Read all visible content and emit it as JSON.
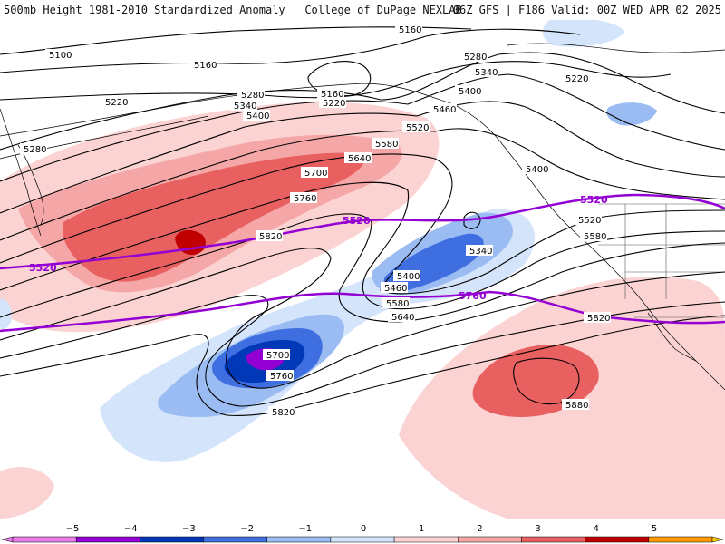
{
  "header": {
    "left_title": "500mb Height 1981-2010 Standardized Anomaly | College of DuPage NEXLAB",
    "right_title": "06Z GFS | F186 Valid: 00Z WED APR 02 2025"
  },
  "contour_labels": {
    "c5100": "5100",
    "c5160a": "5160",
    "c5160b": "5160",
    "c5160c": "5160",
    "c5220a": "5220",
    "c5220b": "5220",
    "c5220c": "5220",
    "c5280a": "5280",
    "c5280b": "5280",
    "c5280c": "5280",
    "c5340a": "5340",
    "c5340b": "5340",
    "c5340c": "5340",
    "c5400a": "5400",
    "c5400b": "5400",
    "c5400c": "5400",
    "c5400d": "5400",
    "c5460a": "5460",
    "c5460b": "5460",
    "c5520a": "5520",
    "c5520b": "5520",
    "c5580a": "5580",
    "c5580b": "5580",
    "c5580c": "5580",
    "c5640a": "5640",
    "c5640b": "5640",
    "c5700a": "5700",
    "c5700b": "5700",
    "c5760a": "5760",
    "c5760b": "5760",
    "c5820a": "5820",
    "c5820b": "5820",
    "c5820c": "5820",
    "c5880": "5880"
  },
  "reference_labels": {
    "r5520a": "5520",
    "r5520b": "5520",
    "r5520c": "5520",
    "r5760": "5760"
  },
  "colorbar": {
    "ticks": [
      "−5",
      "−4",
      "−3",
      "−2",
      "−1",
      "0",
      "1",
      "2",
      "3",
      "4",
      "5"
    ],
    "colors": {
      "neg5": "#e87ce8",
      "neg4": "#9400d3",
      "neg3": "#0038b8",
      "neg2": "#3f6ee0",
      "neg1": "#9bbcf2",
      "neg05": "#d3e4fb",
      "pos05": "#fbd3d3",
      "pos1": "#f5a7a7",
      "pos2": "#e86060",
      "pos3": "#c00000",
      "pos4": "#ff9900",
      "pos5": "#ffcc00"
    }
  },
  "colors": {
    "reference_contour": "#9400d3",
    "height_contour": "#000000",
    "coastline": "#000000",
    "state_border": "#555555"
  }
}
